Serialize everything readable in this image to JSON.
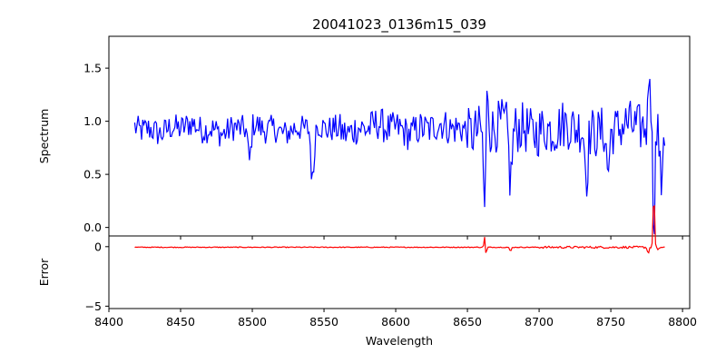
{
  "chart_data": [
    {
      "type": "line",
      "panel": "spectrum",
      "title": "20041023_0136m15_039",
      "xlabel": "",
      "ylabel": "Spectrum",
      "xlim": [
        8400,
        8805
      ],
      "ylim": [
        -0.08,
        1.8
      ],
      "x_ticks": [
        8400,
        8450,
        8500,
        8550,
        8600,
        8650,
        8700,
        8750,
        8800
      ],
      "y_ticks": [
        0.0,
        0.5,
        1.0,
        1.5
      ],
      "y_tick_labels": [
        "0.0",
        "0.5",
        "1.0",
        "1.5"
      ],
      "color": "#0000ff",
      "grid": false,
      "x_range": [
        8418,
        8788
      ],
      "x_step": 0.8,
      "features": [
        {
          "x": 8542,
          "depth": 0.55,
          "width": 1.5
        },
        {
          "x": 8498,
          "depth": 0.35,
          "width": 1.5
        },
        {
          "x": 8662,
          "depth": 0.75,
          "width": 1.2
        },
        {
          "x": 8664,
          "depth": -0.45,
          "width": 1.0
        },
        {
          "x": 8680,
          "depth": 0.5,
          "width": 1.5
        },
        {
          "x": 8733,
          "depth": 0.45,
          "width": 1.5
        },
        {
          "x": 8748,
          "depth": 0.4,
          "width": 1.5
        },
        {
          "x": 8777,
          "depth": -0.7,
          "width": 1.0
        },
        {
          "x": 8780,
          "depth": 0.85,
          "width": 1.0
        },
        {
          "x": 8785,
          "depth": 0.55,
          "width": 1.0
        }
      ]
    },
    {
      "type": "line",
      "panel": "error",
      "title": "",
      "xlabel": "Wavelength",
      "ylabel": "Error",
      "xlim": [
        8400,
        8805
      ],
      "ylim": [
        -5.2,
        0.9
      ],
      "x_ticks": [
        8400,
        8450,
        8500,
        8550,
        8600,
        8650,
        8700,
        8750,
        8800
      ],
      "x_tick_labels": [
        "8400",
        "8450",
        "8500",
        "8550",
        "8600",
        "8650",
        "8700",
        "8750",
        "8800"
      ],
      "y_ticks": [
        0,
        -5
      ],
      "y_tick_labels": [
        "0",
        "−5"
      ],
      "color": "#ff0000",
      "grid": false,
      "x_range": [
        8418,
        8788
      ],
      "x_step": 0.8,
      "features": [
        {
          "x": 8662,
          "depth": -0.9,
          "width": 0.6
        },
        {
          "x": 8663,
          "depth": 0.7,
          "width": 0.6
        },
        {
          "x": 8680,
          "depth": 0.35,
          "width": 0.8
        },
        {
          "x": 8776,
          "depth": 0.5,
          "width": 0.8
        },
        {
          "x": 8780,
          "depth": -4.8,
          "width": 0.7
        },
        {
          "x": 8783,
          "depth": 0.3,
          "width": 0.8
        }
      ]
    }
  ]
}
